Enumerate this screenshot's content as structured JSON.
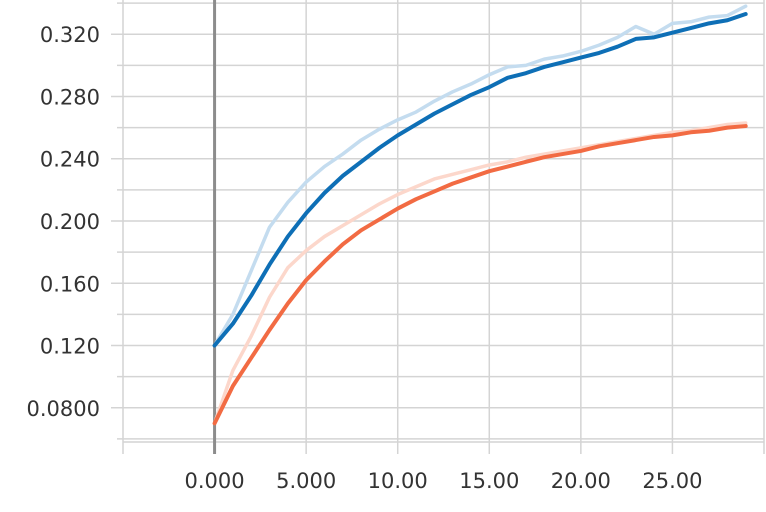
{
  "chart_data": {
    "type": "line",
    "title": "",
    "xlabel": "",
    "ylabel": "",
    "xlim": [
      -5,
      30
    ],
    "ylim": [
      0.058,
      0.342
    ],
    "grid": true,
    "legend": "none",
    "x_ticks": [
      0,
      5,
      10,
      15,
      20,
      25
    ],
    "x_tick_labels": [
      "0.000",
      "5.000",
      "10.00",
      "15.00",
      "20.00",
      "25.00"
    ],
    "y_ticks": [
      0.08,
      0.12,
      0.16,
      0.2,
      0.24,
      0.28,
      0.32
    ],
    "y_tick_labels": [
      "0.0800",
      "0.120",
      "0.160",
      "0.200",
      "0.240",
      "0.280",
      "0.320"
    ],
    "x_minor_ticks": [
      -5,
      30
    ],
    "y_minor_ticks": [
      0.06,
      0.1,
      0.14,
      0.18,
      0.22,
      0.26,
      0.3,
      0.34
    ],
    "x": [
      0,
      1,
      2,
      3,
      4,
      5,
      6,
      7,
      8,
      9,
      10,
      11,
      12,
      13,
      14,
      15,
      16,
      17,
      18,
      19,
      20,
      21,
      22,
      23,
      24,
      25,
      26,
      27,
      28,
      29
    ],
    "series": [
      {
        "color": "#0e6fb6",
        "raw_color": "#c4dcef",
        "values": [
          0.12,
          0.134,
          0.152,
          0.172,
          0.19,
          0.205,
          0.218,
          0.229,
          0.238,
          0.247,
          0.255,
          0.262,
          0.269,
          0.275,
          0.281,
          0.286,
          0.292,
          0.295,
          0.299,
          0.302,
          0.305,
          0.308,
          0.312,
          0.317,
          0.318,
          0.321,
          0.324,
          0.327,
          0.329,
          0.333
        ],
        "raw_values": [
          0.12,
          0.14,
          0.168,
          0.196,
          0.212,
          0.225,
          0.235,
          0.243,
          0.252,
          0.259,
          0.265,
          0.27,
          0.277,
          0.283,
          0.288,
          0.294,
          0.299,
          0.3,
          0.304,
          0.306,
          0.309,
          0.313,
          0.318,
          0.325,
          0.32,
          0.327,
          0.328,
          0.331,
          0.332,
          0.338
        ]
      },
      {
        "color": "#f26b43",
        "raw_color": "#fcd7cb",
        "values": [
          0.07,
          0.094,
          0.112,
          0.13,
          0.147,
          0.162,
          0.174,
          0.185,
          0.194,
          0.201,
          0.208,
          0.214,
          0.219,
          0.224,
          0.228,
          0.232,
          0.235,
          0.238,
          0.241,
          0.243,
          0.245,
          0.248,
          0.25,
          0.252,
          0.254,
          0.255,
          0.257,
          0.258,
          0.26,
          0.261
        ],
        "raw_values": [
          0.07,
          0.104,
          0.126,
          0.151,
          0.17,
          0.181,
          0.19,
          0.197,
          0.204,
          0.211,
          0.217,
          0.222,
          0.227,
          0.23,
          0.233,
          0.236,
          0.238,
          0.241,
          0.243,
          0.245,
          0.247,
          0.249,
          0.251,
          0.253,
          0.255,
          0.257,
          0.258,
          0.26,
          0.262,
          0.263
        ]
      }
    ]
  }
}
